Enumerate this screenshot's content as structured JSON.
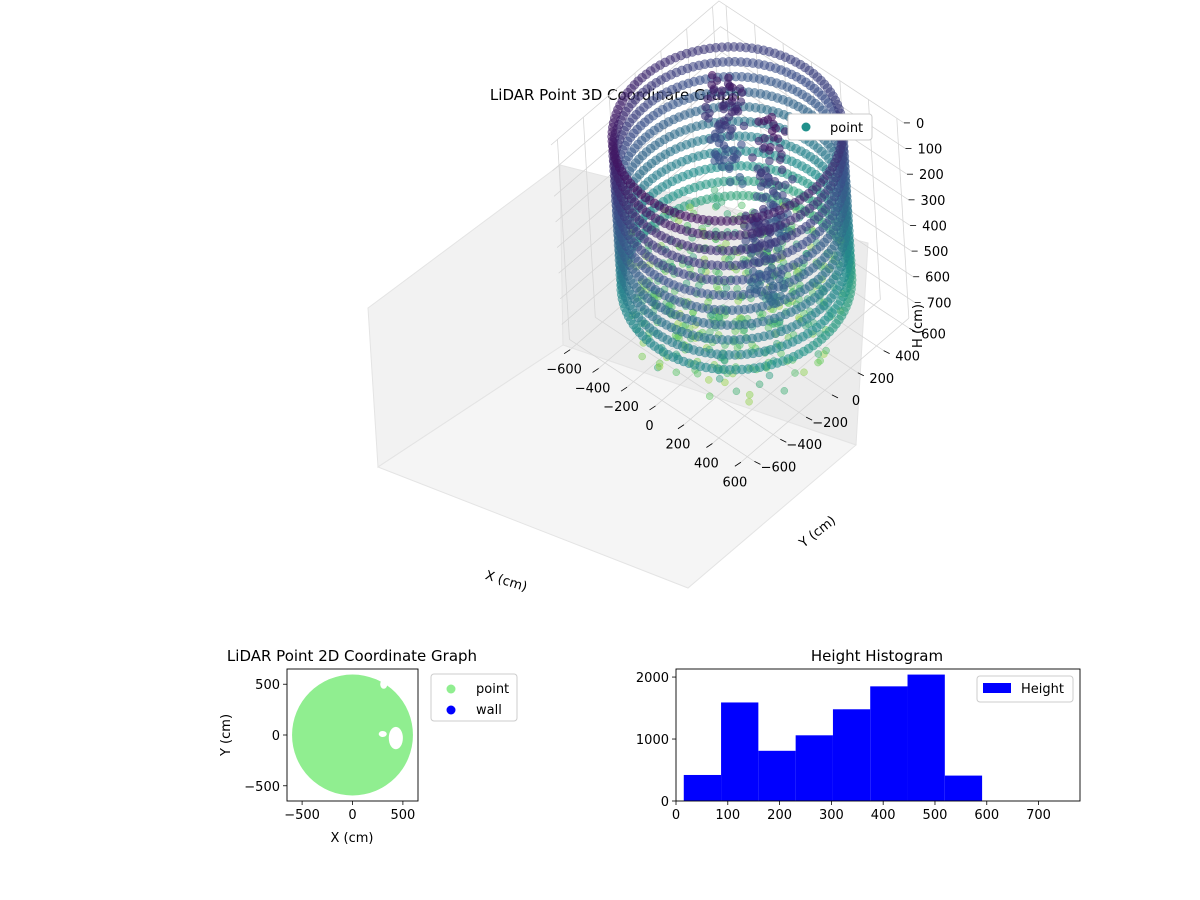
{
  "figure": {
    "background": "#ffffff"
  },
  "chart_data": [
    {
      "id": "chart3d",
      "type": "scatter",
      "projection": "3d",
      "title": "LiDAR Point 3D Coordinate Graph",
      "xlabel": "X (cm)",
      "ylabel": "Y (cm)",
      "zlabel": "H (cm)",
      "x_ticks": [
        -600,
        -400,
        -200,
        0,
        200,
        400,
        600
      ],
      "y_ticks": [
        -600,
        -400,
        -200,
        0,
        200,
        400,
        600
      ],
      "z_ticks": [
        0,
        100,
        200,
        300,
        400,
        500,
        600,
        700
      ],
      "xlim": [
        -650,
        650
      ],
      "ylim": [
        -650,
        650
      ],
      "zlim": [
        0,
        780
      ],
      "z_inverted": true,
      "grid": true,
      "colormap": "viridis",
      "legend": {
        "placement": "upper-right",
        "entries": [
          {
            "name": "point",
            "color": "#21918c"
          }
        ]
      },
      "ring": {
        "radius_cm": 600,
        "h_range_cm": [
          0,
          580
        ],
        "note_values": "wall points around full circle"
      },
      "interior_features": [
        {
          "label_hidden": true,
          "x": 100,
          "y": 200,
          "h_range": [
            0,
            450
          ]
        },
        {
          "label_hidden": true,
          "x": 300,
          "y": -100,
          "h_range": [
            150,
            500
          ]
        },
        {
          "label_hidden": true,
          "x": -300,
          "y": 300,
          "h_range": [
            0,
            400
          ]
        }
      ]
    },
    {
      "id": "chart2d",
      "type": "scatter",
      "title": "LiDAR Point 2D Coordinate Graph",
      "xlabel": "X (cm)",
      "ylabel": "Y (cm)",
      "x_ticks": [
        -500,
        0,
        500
      ],
      "y_ticks": [
        -500,
        0,
        500
      ],
      "xlim": [
        -650,
        650
      ],
      "ylim": [
        -650,
        650
      ],
      "series": [
        {
          "name": "point",
          "color": "#90ee90",
          "shape": "filled-disc",
          "radius_cm": 600
        },
        {
          "name": "wall",
          "color": "#0000ff"
        }
      ],
      "legend": {
        "placement": "outside-right"
      },
      "holes": [
        {
          "x": 430,
          "y": -30,
          "rx": 70,
          "ry": 110
        },
        {
          "x": 300,
          "y": 10,
          "rx": 40,
          "ry": 30
        },
        {
          "x": 310,
          "y": 500,
          "rx": 35,
          "ry": 45
        }
      ]
    },
    {
      "id": "hist",
      "type": "bar",
      "title": "Height Histogram",
      "xlabel": "",
      "ylabel": "",
      "color": "#0000ff",
      "x_ticks": [
        0,
        100,
        200,
        300,
        400,
        500,
        600,
        700
      ],
      "y_ticks": [
        0,
        1000,
        2000
      ],
      "xlim": [
        0,
        780
      ],
      "ylim": [
        0,
        2130
      ],
      "bins": [
        {
          "from": 15,
          "to": 87,
          "count": 420
        },
        {
          "from": 87,
          "to": 159,
          "count": 1590
        },
        {
          "from": 159,
          "to": 231,
          "count": 810
        },
        {
          "from": 231,
          "to": 303,
          "count": 1060
        },
        {
          "from": 303,
          "to": 375,
          "count": 1480
        },
        {
          "from": 375,
          "to": 447,
          "count": 1850
        },
        {
          "from": 447,
          "to": 519,
          "count": 2040
        },
        {
          "from": 519,
          "to": 591,
          "count": 410
        }
      ],
      "legend": {
        "placement": "upper-right",
        "entries": [
          {
            "name": "Height",
            "color": "#0000ff"
          }
        ]
      }
    }
  ]
}
